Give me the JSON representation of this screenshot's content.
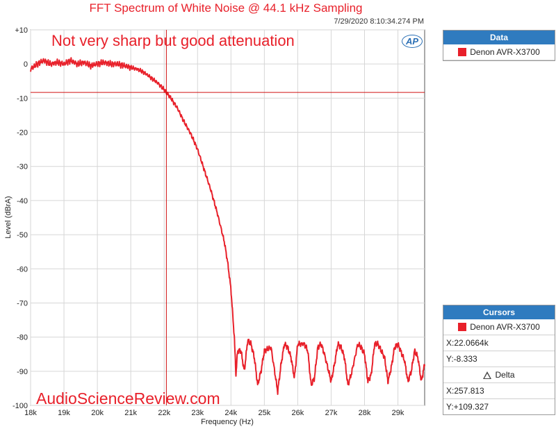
{
  "chart_data": {
    "type": "line",
    "title": "FFT Spectrum of White Noise @ 44.1 kHz Sampling",
    "timestamp": "7/29/2020 8:10:34.274 PM",
    "annotation": "Not very sharp but good attenuation",
    "watermark": "AudioScienceReview.com",
    "xlabel": "Frequency (Hz)",
    "ylabel": "Level (dBrA)",
    "xlim": [
      18000,
      29800
    ],
    "ylim": [
      -100,
      10
    ],
    "x_ticks": [
      18000,
      19000,
      20000,
      21000,
      22000,
      23000,
      24000,
      25000,
      26000,
      27000,
      28000,
      29000
    ],
    "x_tick_labels": [
      "18k",
      "19k",
      "20k",
      "21k",
      "22k",
      "23k",
      "24k",
      "25k",
      "26k",
      "27k",
      "28k",
      "29k"
    ],
    "y_ticks": [
      10,
      0,
      -10,
      -20,
      -30,
      -40,
      -50,
      -60,
      -70,
      -80,
      -90,
      -100
    ],
    "y_tick_labels": [
      "+10",
      "0",
      "-10",
      "-20",
      "-30",
      "-40",
      "-50",
      "-60",
      "-70",
      "-80",
      "-90",
      "-100"
    ],
    "grid": true,
    "line_color": "#e8202a",
    "cursor": {
      "x": 22066.4,
      "y": -8.333
    },
    "series": [
      {
        "name": "Denon AVR-X3700",
        "x": [
          18000,
          18200,
          18400,
          18600,
          18800,
          19000,
          19200,
          19400,
          19600,
          19800,
          20000,
          20200,
          20400,
          20600,
          20800,
          21000,
          21200,
          21400,
          21600,
          21800,
          22000,
          22066,
          22200,
          22400,
          22600,
          22800,
          23000,
          23200,
          23400,
          23600,
          23800,
          23900,
          24000,
          24100,
          24150,
          24200,
          24300,
          24400,
          24500,
          24600,
          24700,
          24800,
          24900,
          25000,
          25200,
          25400,
          25500,
          25600,
          25700,
          25800,
          25900,
          26000,
          26200,
          26300,
          26400,
          26500,
          26600,
          26700,
          26800,
          27000,
          27100,
          27200,
          27300,
          27400,
          27500,
          27600,
          27800,
          27900,
          28000,
          28100,
          28200,
          28300,
          28400,
          28600,
          28700,
          28800,
          28900,
          29000,
          29200,
          29300,
          29400,
          29500,
          29600,
          29700,
          29800
        ],
        "y": [
          -1.5,
          0,
          1,
          0,
          0.5,
          0,
          1,
          0,
          0.5,
          -0.5,
          0,
          0.5,
          0,
          0,
          -0.5,
          -1,
          -1.5,
          -2.5,
          -4,
          -5.5,
          -7.5,
          -8.3,
          -10,
          -13,
          -17,
          -20.5,
          -25,
          -31,
          -37,
          -44,
          -52,
          -58,
          -66,
          -80,
          -91,
          -84,
          -84,
          -90,
          -81,
          -82,
          -86,
          -94,
          -90,
          -84,
          -83,
          -96,
          -88,
          -82,
          -83,
          -86,
          -92,
          -82,
          -82,
          -84,
          -94,
          -92,
          -83,
          -82,
          -85,
          -93,
          -88,
          -82,
          -83,
          -86,
          -94,
          -91,
          -82,
          -83,
          -85,
          -93,
          -91,
          -82,
          -82,
          -86,
          -93,
          -89,
          -83,
          -82,
          -87,
          -93,
          -90,
          -84,
          -86,
          -93,
          -88
        ]
      }
    ]
  },
  "data_panel": {
    "header": "Data",
    "items": [
      "Denon AVR-X3700"
    ]
  },
  "cursors_panel": {
    "header": "Cursors",
    "series_name": "Denon AVR-X3700",
    "x_readout": "X:22.0664k",
    "y_readout": "Y:-8.333",
    "delta_label": "Delta",
    "delta_x_readout": "X:257.813",
    "delta_y_readout": "Y:+109.327"
  },
  "logo_text": "AP"
}
